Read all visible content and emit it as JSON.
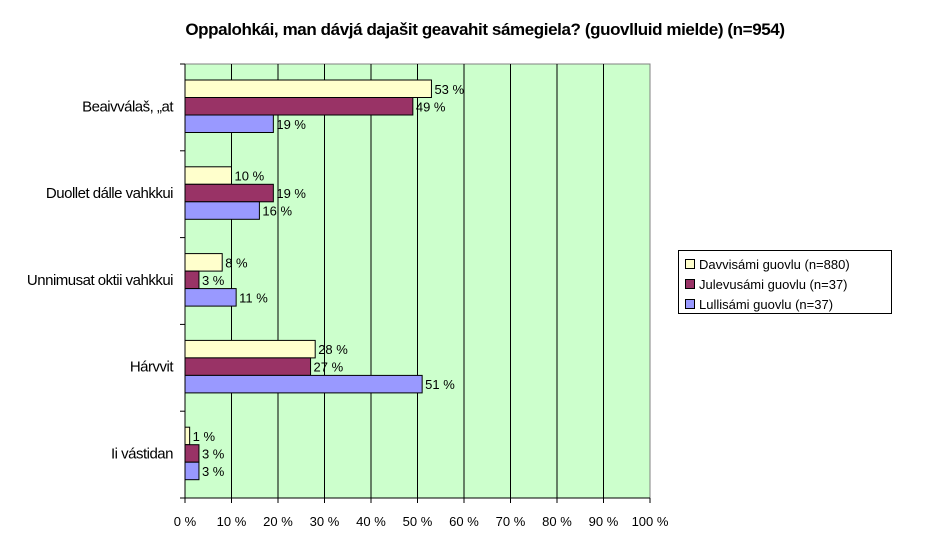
{
  "chart_data": {
    "type": "bar",
    "orientation": "horizontal",
    "title": "Oppalohkái, man dávjá dajašit geavahit sámegiela? (guovlluid mielde) (n=954)",
    "categories": [
      "Beaivválaš, „at",
      "Duollet dálle vahkkui",
      "Unnimusat oktii vahkkui",
      "Hárvvit",
      "Ii vástidan"
    ],
    "series": [
      {
        "name": "Davvisámi guovlu (n=880)",
        "color": "#ffffcc",
        "values": [
          53,
          10,
          8,
          28,
          1
        ],
        "labels": [
          "53 %",
          "10 %",
          "8 %",
          "28 %",
          "1 %"
        ]
      },
      {
        "name": "Julevusámi guovlu (n=37)",
        "color": "#993366",
        "values": [
          49,
          19,
          3,
          27,
          3
        ],
        "labels": [
          "49 %",
          "19 %",
          "3 %",
          "27 %",
          "3 %"
        ]
      },
      {
        "name": "Lullisámi guovlu (n=37)",
        "color": "#9999ff",
        "values": [
          19,
          16,
          11,
          51,
          3
        ],
        "labels": [
          "19 %",
          "16 %",
          "11 %",
          "51 %",
          "3 %"
        ]
      }
    ],
    "xlim": [
      0,
      100
    ],
    "x_ticks": [
      "0 %",
      "10 %",
      "20 %",
      "30 %",
      "40 %",
      "50 %",
      "60 %",
      "70 %",
      "80 %",
      "90 %",
      "100 %"
    ],
    "plot_background": "#ccffcc",
    "grid": true,
    "legend_position": "right"
  }
}
